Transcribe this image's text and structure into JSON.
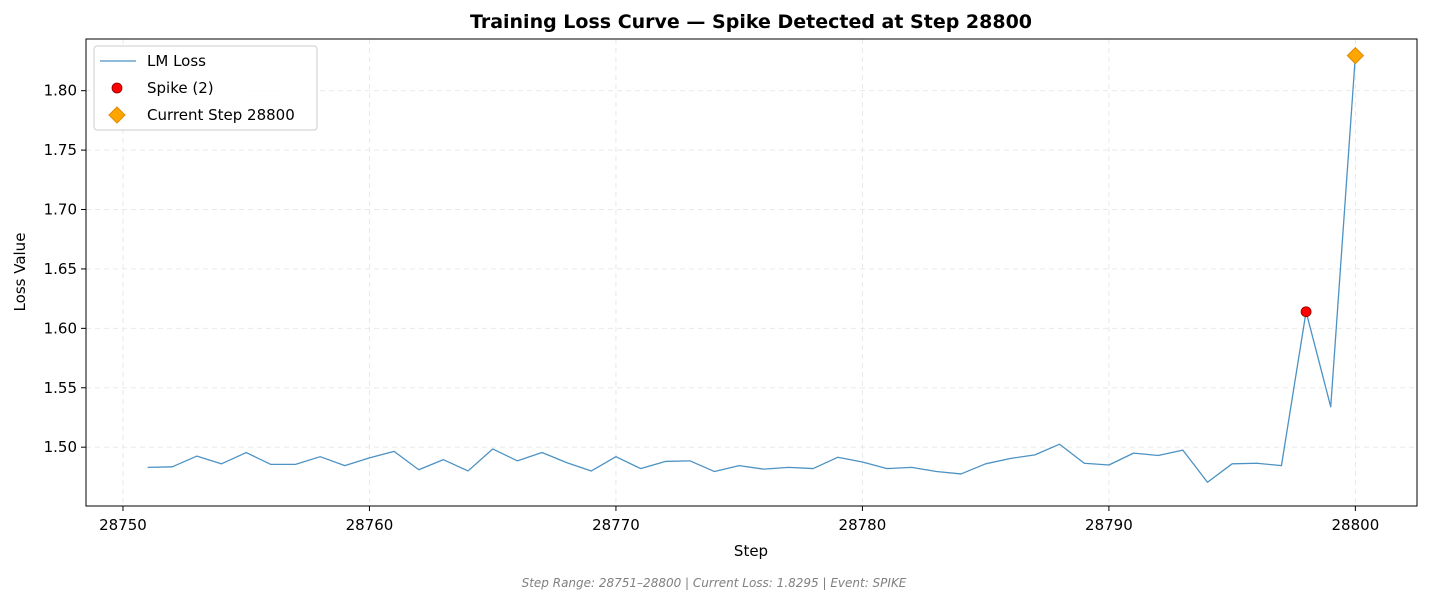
{
  "chart_data": {
    "type": "line",
    "title": "Training Loss Curve — Spike Detected at Step 28800",
    "xlabel": "Step",
    "ylabel": "Loss Value",
    "xlim": [
      28748.5,
      28802.5
    ],
    "ylim": [
      1.4505,
      1.8435
    ],
    "xticks": [
      28750,
      28760,
      28770,
      28780,
      28790,
      28800
    ],
    "yticks": [
      1.5,
      1.55,
      1.6,
      1.65,
      1.7,
      1.75,
      1.8
    ],
    "grid": true,
    "legend_position": "top-left",
    "x": [
      28751,
      28752,
      28753,
      28754,
      28755,
      28756,
      28757,
      28758,
      28759,
      28760,
      28761,
      28762,
      28763,
      28764,
      28765,
      28766,
      28767,
      28768,
      28769,
      28770,
      28771,
      28772,
      28773,
      28774,
      28775,
      28776,
      28777,
      28778,
      28779,
      28780,
      28781,
      28782,
      28783,
      28784,
      28785,
      28786,
      28787,
      28788,
      28789,
      28790,
      28791,
      28792,
      28793,
      28794,
      28795,
      28796,
      28797,
      28798,
      28799,
      28800
    ],
    "series": [
      {
        "name": "LM Loss",
        "color": "#1f77b4",
        "values": [
          1.483,
          1.4835,
          1.4925,
          1.486,
          1.4955,
          1.4855,
          1.4855,
          1.492,
          1.4845,
          1.491,
          1.4965,
          1.481,
          1.4895,
          1.48,
          1.4985,
          1.4885,
          1.4955,
          1.487,
          1.48,
          1.492,
          1.482,
          1.488,
          1.4885,
          1.4795,
          1.4845,
          1.4815,
          1.483,
          1.482,
          1.4915,
          1.4875,
          1.482,
          1.483,
          1.4795,
          1.4775,
          1.486,
          1.4905,
          1.4935,
          1.5025,
          1.4865,
          1.485,
          1.495,
          1.493,
          1.4975,
          1.4705,
          1.486,
          1.4865,
          1.4845,
          1.614,
          1.534,
          1.8295
        ]
      }
    ],
    "markers": [
      {
        "name": "Spike (2)",
        "shape": "circle",
        "color": "#ff0000",
        "points": [
          {
            "x": 28798,
            "y": 1.614
          }
        ]
      },
      {
        "name": "Current Step 28800",
        "shape": "diamond",
        "color": "#ffa500",
        "points": [
          {
            "x": 28800,
            "y": 1.8295
          }
        ]
      }
    ]
  },
  "footer": "Step Range: 28751–28800 | Current Loss: 1.8295 | Event: SPIKE"
}
